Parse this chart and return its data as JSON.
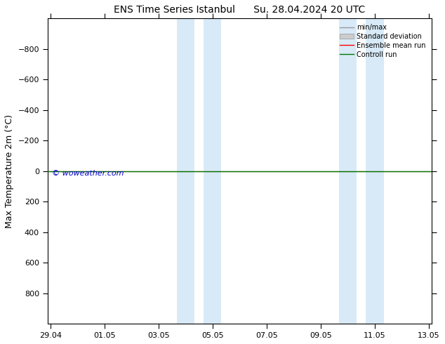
{
  "title1": "ENS Time Series Istanbul",
  "title2": "Su. 28.04.2024 20 UTC",
  "ylabel": "Max Temperature 2m (°C)",
  "ylim": [
    -1000,
    1000
  ],
  "yticks": [
    -800,
    -600,
    -400,
    -200,
    0,
    200,
    400,
    600,
    800
  ],
  "xtick_labels": [
    "29.04",
    "01.05",
    "03.05",
    "05.05",
    "07.05",
    "09.05",
    "11.05",
    "13.05"
  ],
  "xtick_positions": [
    0,
    2,
    4,
    6,
    8,
    10,
    12,
    14
  ],
  "shaded_bands": [
    {
      "x_start": 4.67,
      "x_end": 5.33
    },
    {
      "x_start": 5.67,
      "x_end": 6.33
    },
    {
      "x_start": 10.67,
      "x_end": 11.33
    },
    {
      "x_start": 11.67,
      "x_end": 12.33
    }
  ],
  "shaded_color": "#d8eaf8",
  "watermark": "© woweather.com",
  "watermark_color": "#0000cc",
  "bg_color": "#ffffff",
  "legend_items": [
    {
      "label": "min/max",
      "color": "#999999",
      "lw": 1.0,
      "type": "line"
    },
    {
      "label": "Standard deviation",
      "color": "#cccccc",
      "lw": 6,
      "type": "patch"
    },
    {
      "label": "Ensemble mean run",
      "color": "#ff0000",
      "lw": 1.0,
      "type": "line"
    },
    {
      "label": "Controll run",
      "color": "#007700",
      "lw": 1.0,
      "type": "line"
    }
  ],
  "xlim": [
    -0.1,
    14.1
  ],
  "title_fontsize": 10,
  "ylabel_fontsize": 9,
  "tick_fontsize": 8
}
